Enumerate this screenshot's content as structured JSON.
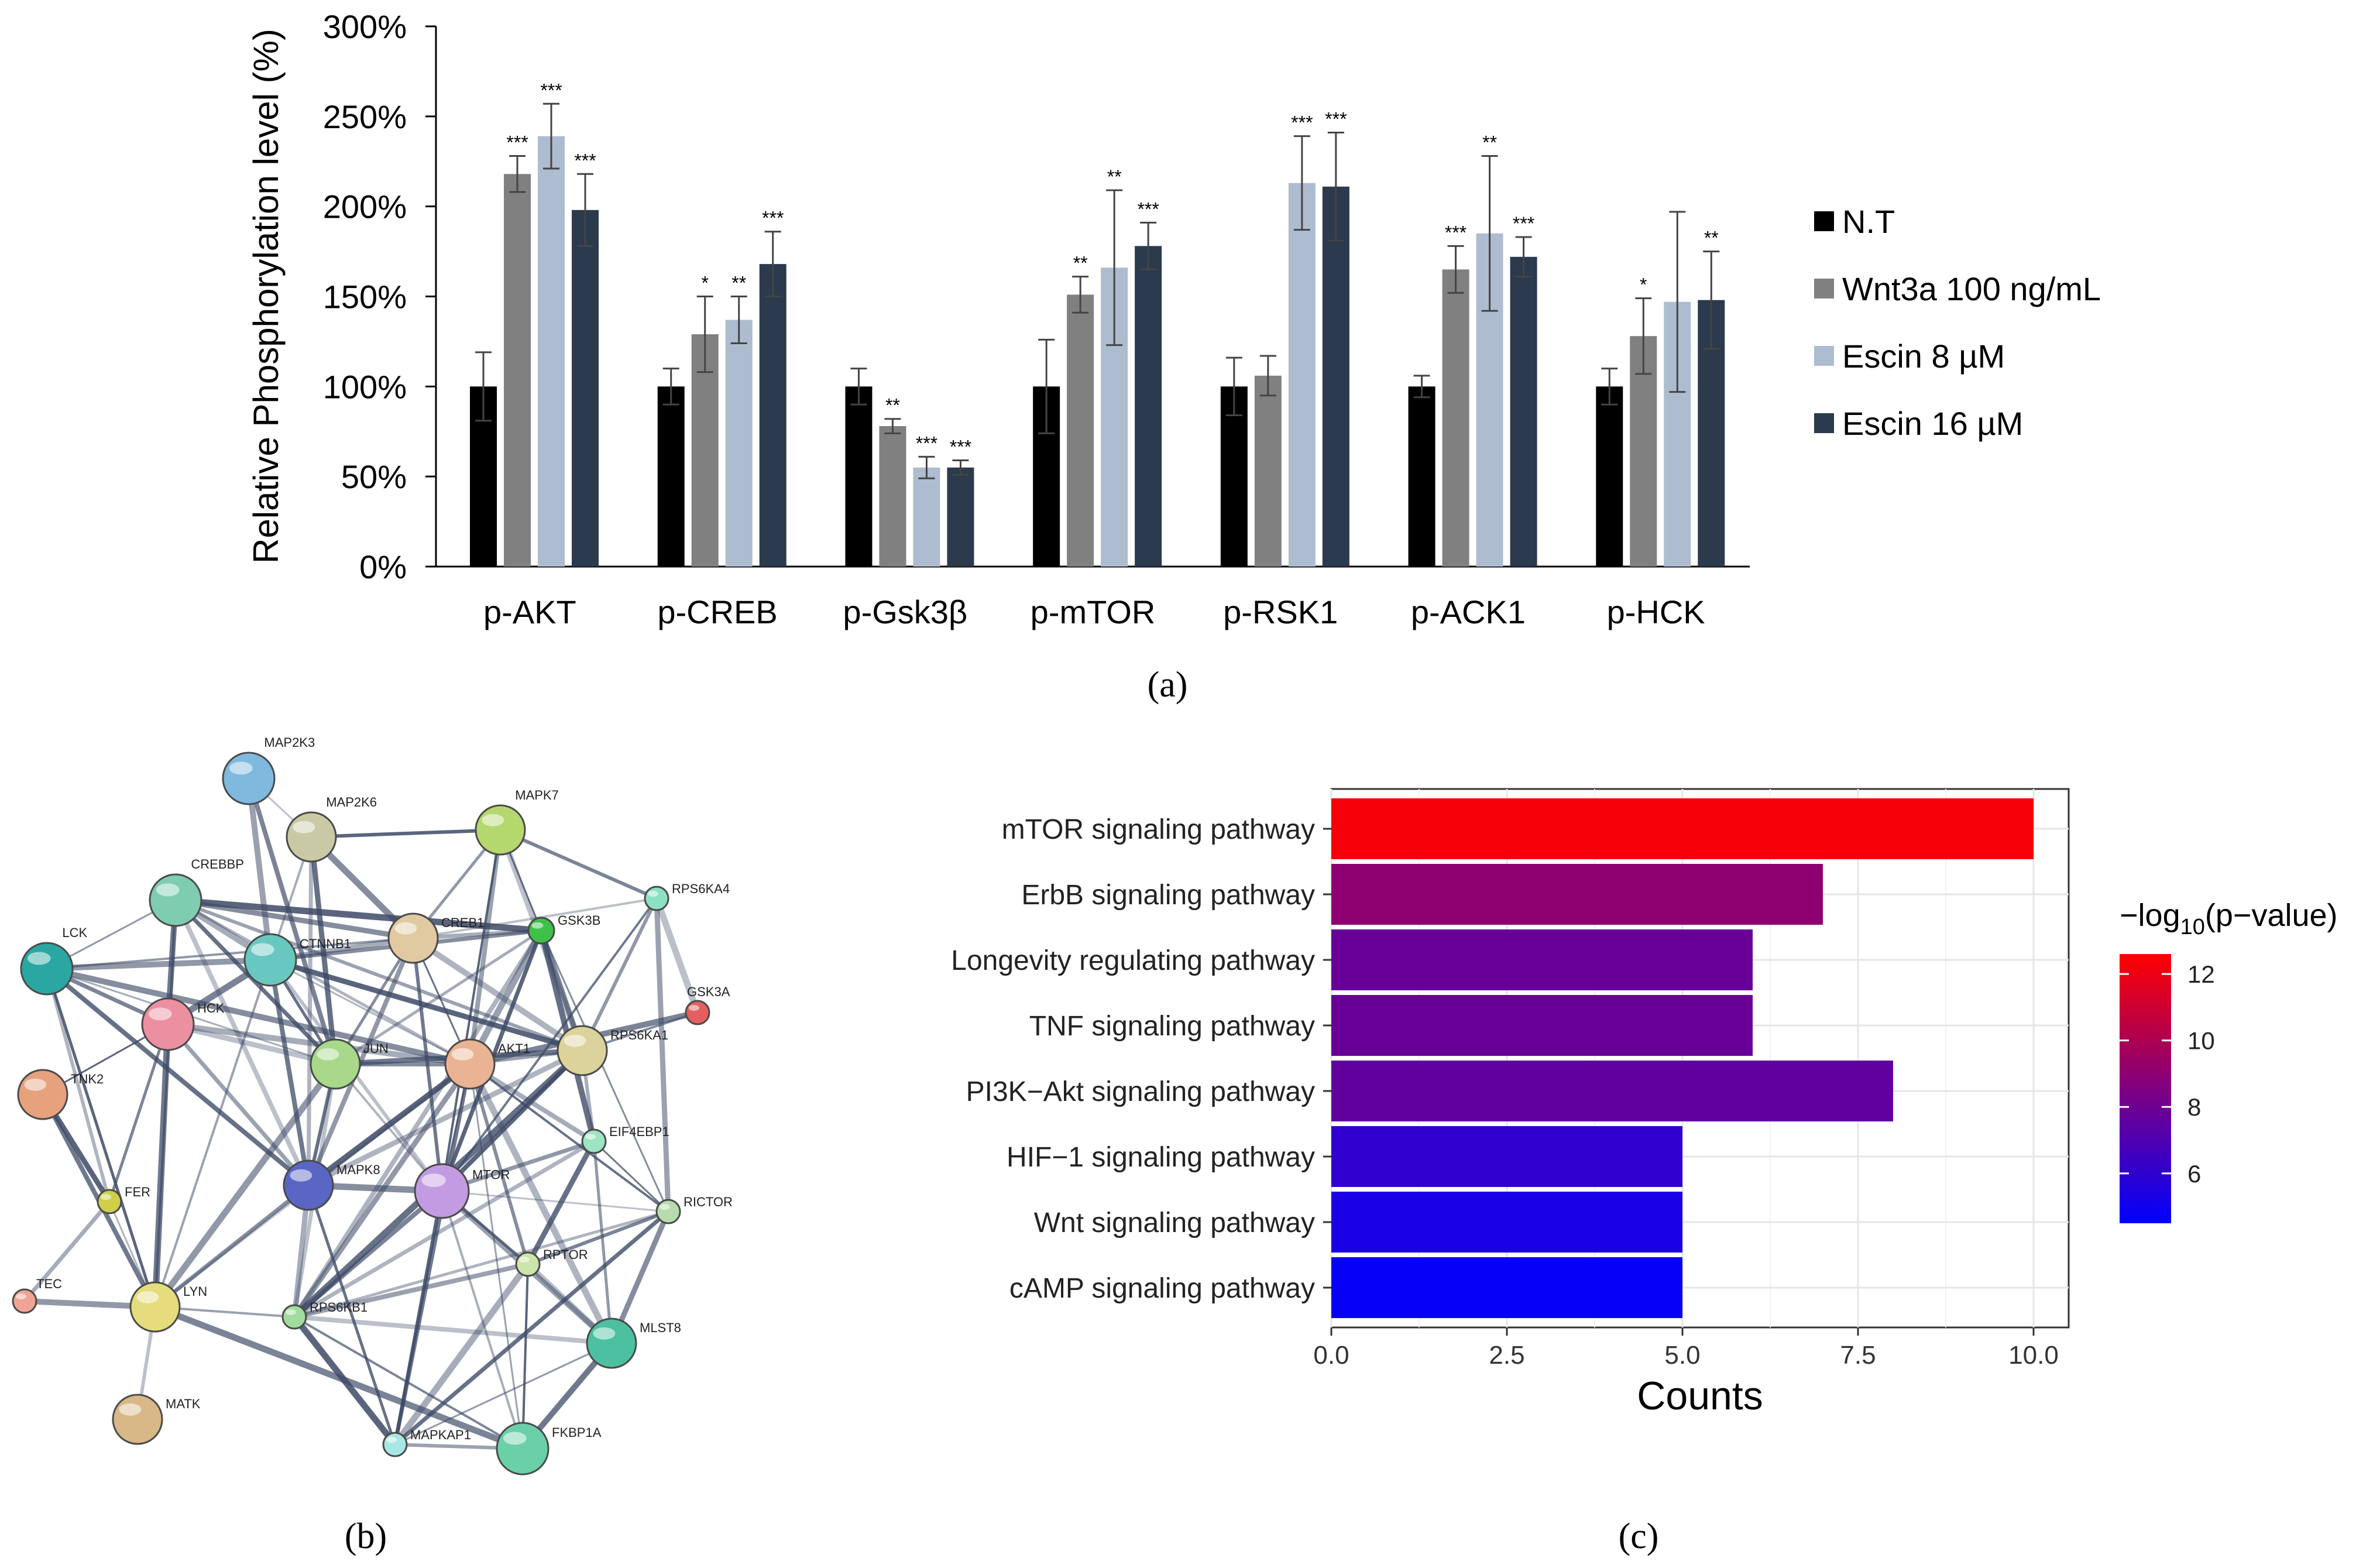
{
  "panels": {
    "a": "(a)",
    "b": "(b)",
    "c": "(c)"
  },
  "chart_data": [
    {
      "type": "bar",
      "panel": "a",
      "title": "",
      "xlabel": "",
      "ylabel": "Relative Phosphorylation level (%)",
      "ylim": [
        0,
        300
      ],
      "yticks": [
        "0%",
        "50%",
        "100%",
        "150%",
        "200%",
        "250%",
        "300%"
      ],
      "categories": [
        "p-AKT",
        "p-CREB",
        "p-Gsk3β",
        "p-mTOR",
        "p-RSK1",
        "p-ACK1",
        "p-HCK"
      ],
      "series": [
        {
          "name": "N.T",
          "color": "#000000",
          "values": [
            100,
            100,
            100,
            100,
            100,
            100,
            100
          ],
          "errors": [
            19,
            10,
            10,
            26,
            16,
            6,
            10
          ],
          "significance": [
            "",
            "",
            "",
            "",
            "",
            "",
            ""
          ]
        },
        {
          "name": "Wnt3a 100 ng/mL",
          "color": "#808080",
          "values": [
            218,
            129,
            78,
            151,
            106,
            165,
            128
          ],
          "errors": [
            10,
            21,
            4,
            10,
            11,
            13,
            21
          ],
          "significance": [
            "***",
            "*",
            "**",
            "**",
            "",
            "***",
            "*"
          ]
        },
        {
          "name": "Escin 8 µM",
          "color": "#adbccf",
          "values": [
            239,
            137,
            55,
            166,
            213,
            185,
            147
          ],
          "errors": [
            18,
            13,
            6,
            43,
            26,
            43,
            50
          ],
          "significance": [
            "***",
            "**",
            "***",
            "**",
            "***",
            "**",
            ""
          ]
        },
        {
          "name": "Escin 16 µM",
          "color": "#2b3a4d",
          "values": [
            198,
            168,
            55,
            178,
            211,
            172,
            148
          ],
          "errors": [
            20,
            18,
            4,
            13,
            30,
            11,
            27
          ],
          "significance": [
            "***",
            "***",
            "***",
            "***",
            "***",
            "***",
            "**"
          ]
        }
      ],
      "legend_position": "right"
    },
    {
      "type": "network",
      "panel": "b",
      "nodes": [
        "MAP2K3",
        "MAP2K6",
        "MAPK7",
        "CREBBP",
        "RPS6KA4",
        "CTNNB1",
        "CREB1",
        "GSK3B",
        "LCK",
        "GSK3A",
        "RPS6KA1",
        "HCK",
        "JUN",
        "AKT1",
        "TNK2",
        "EIF4EBP1",
        "MTOR",
        "MAPK8",
        "FER",
        "RICTOR",
        "RPTOR",
        "TEC",
        "LYN",
        "RPS6KB1",
        "MLST8",
        "MATK",
        "MAPKAP1",
        "FKBP1A"
      ],
      "edges": [
        [
          "MAP2K3",
          "MAP2K6"
        ],
        [
          "MAP2K3",
          "CTNNB1"
        ],
        [
          "MAP2K3",
          "JUN"
        ],
        [
          "MAP2K6",
          "MAPK7"
        ],
        [
          "MAP2K6",
          "CTNNB1"
        ],
        [
          "MAP2K6",
          "CREB1"
        ],
        [
          "MAP2K6",
          "JUN"
        ],
        [
          "MAP2K6",
          "MAPK8"
        ],
        [
          "MAPK7",
          "CREB1"
        ],
        [
          "MAPK7",
          "GSK3B"
        ],
        [
          "MAPK7",
          "RPS6KA1"
        ],
        [
          "MAPK7",
          "AKT1"
        ],
        [
          "MAPK7",
          "RPS6KA4"
        ],
        [
          "MAPK7",
          "MTOR"
        ],
        [
          "CREBBP",
          "CTNNB1"
        ],
        [
          "CREBBP",
          "CREB1"
        ],
        [
          "CREBBP",
          "JUN"
        ],
        [
          "CREBBP",
          "AKT1"
        ],
        [
          "CREBBP",
          "LCK"
        ],
        [
          "CREBBP",
          "HCK"
        ],
        [
          "CREBBP",
          "MAPK8"
        ],
        [
          "CREBBP",
          "RPS6KA1"
        ],
        [
          "CREBBP",
          "LYN"
        ],
        [
          "CREBBP",
          "GSK3B"
        ],
        [
          "CTNNB1",
          "CREB1"
        ],
        [
          "CTNNB1",
          "GSK3B"
        ],
        [
          "CTNNB1",
          "JUN"
        ],
        [
          "CTNNB1",
          "AKT1"
        ],
        [
          "CTNNB1",
          "LCK"
        ],
        [
          "CTNNB1",
          "MAPK8"
        ],
        [
          "CTNNB1",
          "MTOR"
        ],
        [
          "CTNNB1",
          "LYN"
        ],
        [
          "CTNNB1",
          "HCK"
        ],
        [
          "CTNNB1",
          "RPS6KA1"
        ],
        [
          "CREB1",
          "GSK3B"
        ],
        [
          "CREB1",
          "JUN"
        ],
        [
          "CREB1",
          "AKT1"
        ],
        [
          "CREB1",
          "RPS6KA1"
        ],
        [
          "CREB1",
          "MAPK8"
        ],
        [
          "CREB1",
          "MTOR"
        ],
        [
          "CREB1",
          "RPS6KA4"
        ],
        [
          "GSK3B",
          "AKT1"
        ],
        [
          "GSK3B",
          "RPS6KA1"
        ],
        [
          "GSK3B",
          "MTOR"
        ],
        [
          "GSK3B",
          "JUN"
        ],
        [
          "GSK3B",
          "RICTOR"
        ],
        [
          "GSK3B",
          "EIF4EBP1"
        ],
        [
          "GSK3B",
          "RPS6KB1"
        ],
        [
          "RPS6KA4",
          "RPS6KA1"
        ],
        [
          "RPS6KA4",
          "MTOR"
        ],
        [
          "RPS6KA4",
          "GSK3A"
        ],
        [
          "RPS6KA4",
          "RICTOR"
        ],
        [
          "LCK",
          "HCK"
        ],
        [
          "LCK",
          "LYN"
        ],
        [
          "LCK",
          "JUN"
        ],
        [
          "LCK",
          "AKT1"
        ],
        [
          "LCK",
          "MAPK8"
        ],
        [
          "LCK",
          "FER"
        ],
        [
          "LCK",
          "CREB1"
        ],
        [
          "HCK",
          "LYN"
        ],
        [
          "HCK",
          "JUN"
        ],
        [
          "HCK",
          "MAPK8"
        ],
        [
          "HCK",
          "FER"
        ],
        [
          "HCK",
          "TNK2"
        ],
        [
          "HCK",
          "AKT1"
        ],
        [
          "JUN",
          "AKT1"
        ],
        [
          "JUN",
          "MAPK8"
        ],
        [
          "JUN",
          "MTOR"
        ],
        [
          "JUN",
          "LYN"
        ],
        [
          "JUN",
          "RPS6KA1"
        ],
        [
          "JUN",
          "RPS6KB1"
        ],
        [
          "AKT1",
          "RPS6KA1"
        ],
        [
          "AKT1",
          "MTOR"
        ],
        [
          "AKT1",
          "MAPK8"
        ],
        [
          "AKT1",
          "EIF4EBP1"
        ],
        [
          "AKT1",
          "RPTOR"
        ],
        [
          "AKT1",
          "RICTOR"
        ],
        [
          "AKT1",
          "MLST8"
        ],
        [
          "AKT1",
          "RPS6KB1"
        ],
        [
          "AKT1",
          "MAPKAP1"
        ],
        [
          "AKT1",
          "LYN"
        ],
        [
          "AKT1",
          "FKBP1A"
        ],
        [
          "AKT1",
          "GSK3A"
        ],
        [
          "RPS6KA1",
          "MTOR"
        ],
        [
          "RPS6KA1",
          "EIF4EBP1"
        ],
        [
          "RPS6KA1",
          "GSK3A"
        ],
        [
          "RPS6KA1",
          "RPS6KB1"
        ],
        [
          "RPS6KA1",
          "MAPK8"
        ],
        [
          "MTOR",
          "EIF4EBP1"
        ],
        [
          "MTOR",
          "RPTOR"
        ],
        [
          "MTOR",
          "RICTOR"
        ],
        [
          "MTOR",
          "MLST8"
        ],
        [
          "MTOR",
          "RPS6KB1"
        ],
        [
          "MTOR",
          "MAPKAP1"
        ],
        [
          "MTOR",
          "FKBP1A"
        ],
        [
          "MTOR",
          "MAPK8"
        ],
        [
          "EIF4EBP1",
          "RPTOR"
        ],
        [
          "EIF4EBP1",
          "RPS6KB1"
        ],
        [
          "EIF4EBP1",
          "MLST8"
        ],
        [
          "EIF4EBP1",
          "RICTOR"
        ],
        [
          "RPTOR",
          "MLST8"
        ],
        [
          "RPTOR",
          "RPS6KB1"
        ],
        [
          "RPTOR",
          "RICTOR"
        ],
        [
          "RPTOR",
          "FKBP1A"
        ],
        [
          "RPTOR",
          "MAPKAP1"
        ],
        [
          "RICTOR",
          "MLST8"
        ],
        [
          "RICTOR",
          "MAPKAP1"
        ],
        [
          "RICTOR",
          "RPS6KB1"
        ],
        [
          "MLST8",
          "MAPKAP1"
        ],
        [
          "MLST8",
          "FKBP1A"
        ],
        [
          "MLST8",
          "RPS6KB1"
        ],
        [
          "MAPKAP1",
          "FKBP1A"
        ],
        [
          "RPS6KB1",
          "FKBP1A"
        ],
        [
          "RPS6KB1",
          "MAPKAP1"
        ],
        [
          "MAPK8",
          "RPS6KB1"
        ],
        [
          "MAPK8",
          "LYN"
        ],
        [
          "MAPK8",
          "MAPKAP1"
        ],
        [
          "LYN",
          "FER"
        ],
        [
          "LYN",
          "TEC"
        ],
        [
          "LYN",
          "TNK2"
        ],
        [
          "LYN",
          "MATK"
        ],
        [
          "LYN",
          "RPS6KB1"
        ],
        [
          "LYN",
          "FKBP1A"
        ],
        [
          "FER",
          "TNK2"
        ],
        [
          "TEC",
          "FER"
        ]
      ]
    },
    {
      "type": "bar",
      "orientation": "horizontal",
      "panel": "c",
      "title": "",
      "xlabel": "Counts",
      "ylabel": "",
      "xlim": [
        0,
        10.5
      ],
      "xticks": [
        "0.0",
        "2.5",
        "5.0",
        "7.5",
        "10.0"
      ],
      "categories": [
        "mTOR signaling pathway",
        "ErbB signaling pathway",
        "Longevity regulating pathway",
        "TNF signaling pathway",
        "PI3K−Akt signaling pathway",
        "HIF−1 signaling pathway",
        "Wnt signaling pathway",
        "cAMP signaling pathway"
      ],
      "values": [
        10,
        7,
        6,
        6,
        8,
        5,
        5,
        5
      ],
      "neg_log10_p": [
        12.3,
        9.0,
        7.8,
        7.8,
        7.6,
        6.0,
        5.3,
        4.7
      ],
      "colorbar": {
        "title": "−log",
        "title_sub": "10",
        "title_tail": "(p−value)",
        "ticks": [
          "12",
          "10",
          "8",
          "6"
        ],
        "range": [
          4.5,
          12.6
        ],
        "low_color": "#0000ff",
        "high_color": "#ff0000"
      }
    }
  ]
}
